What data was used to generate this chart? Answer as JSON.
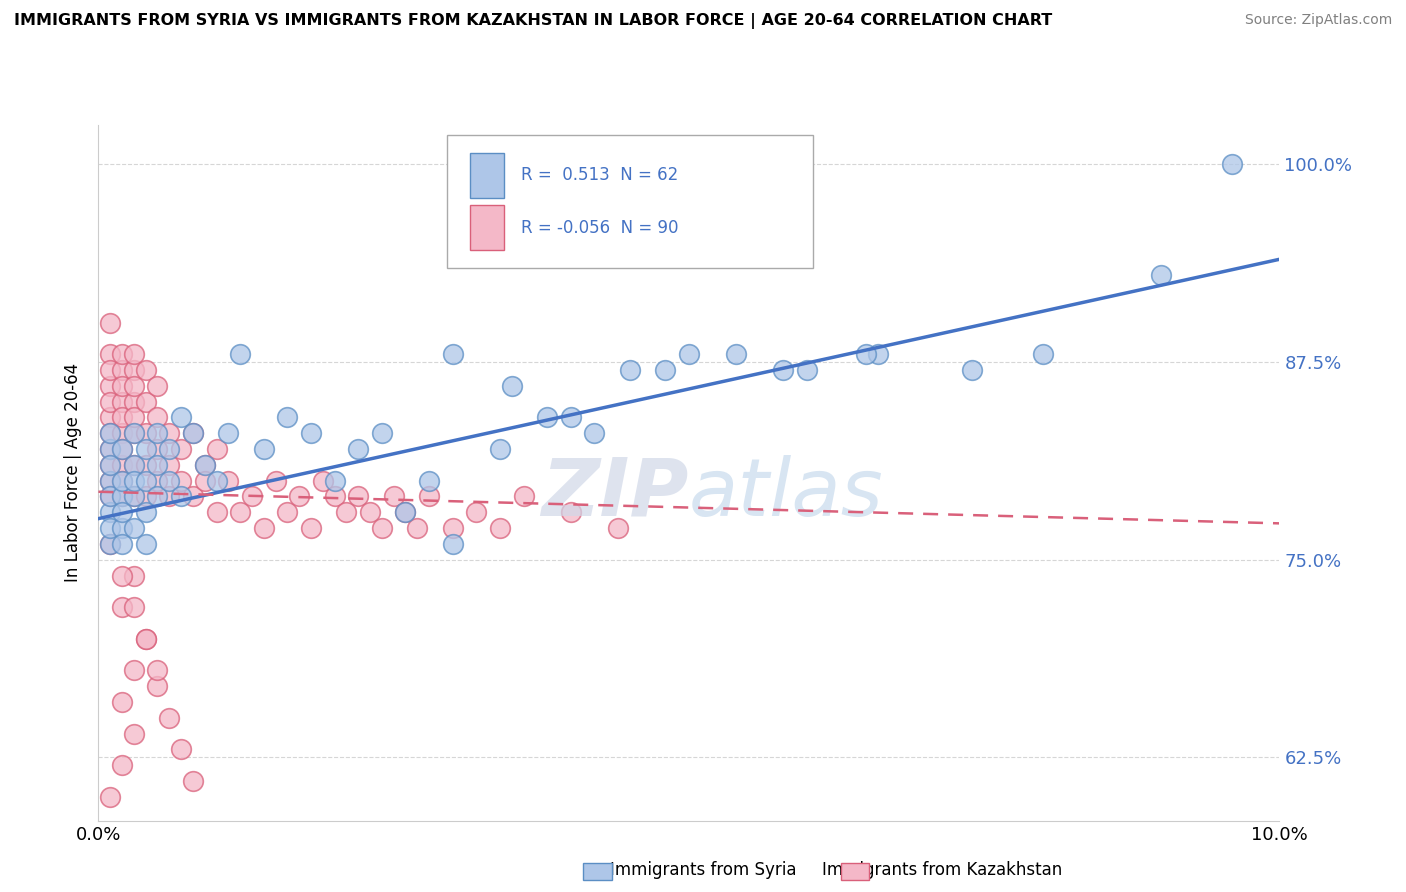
{
  "title": "IMMIGRANTS FROM SYRIA VS IMMIGRANTS FROM KAZAKHSTAN IN LABOR FORCE | AGE 20-64 CORRELATION CHART",
  "source": "Source: ZipAtlas.com",
  "ylabel": "In Labor Force | Age 20-64",
  "yticks": [
    0.625,
    0.75,
    0.875,
    1.0
  ],
  "ytick_labels": [
    "62.5%",
    "75.0%",
    "87.5%",
    "100.0%"
  ],
  "xlim": [
    0.0,
    0.1
  ],
  "ylim": [
    0.585,
    1.025
  ],
  "syria_R": 0.513,
  "syria_N": 62,
  "kazakhstan_R": -0.056,
  "kazakhstan_N": 90,
  "syria_color": "#aec6e8",
  "syria_edge_color": "#5b8ec4",
  "syria_line_color": "#4472c4",
  "kazakhstan_color": "#f4b8c8",
  "kazakhstan_edge_color": "#d9607a",
  "kazakhstan_line_color": "#d9607a",
  "legend_label_syria": "Immigrants from Syria",
  "legend_label_kazakhstan": "Immigrants from Kazakhstan",
  "syria_line_y0": 0.776,
  "syria_line_y1": 0.94,
  "kazakhstan_line_y0": 0.793,
  "kazakhstan_line_y1": 0.773,
  "syria_scatter_x": [
    0.001,
    0.001,
    0.001,
    0.001,
    0.001,
    0.001,
    0.001,
    0.001,
    0.002,
    0.002,
    0.002,
    0.002,
    0.002,
    0.002,
    0.003,
    0.003,
    0.003,
    0.003,
    0.003,
    0.004,
    0.004,
    0.004,
    0.004,
    0.005,
    0.005,
    0.005,
    0.006,
    0.006,
    0.007,
    0.007,
    0.008,
    0.009,
    0.01,
    0.011,
    0.012,
    0.014,
    0.016,
    0.018,
    0.02,
    0.022,
    0.024,
    0.026,
    0.028,
    0.03,
    0.034,
    0.038,
    0.042,
    0.048,
    0.054,
    0.06,
    0.066,
    0.074,
    0.08,
    0.03,
    0.035,
    0.04,
    0.045,
    0.05,
    0.058,
    0.065,
    0.09,
    0.096
  ],
  "syria_scatter_y": [
    0.8,
    0.78,
    0.82,
    0.76,
    0.79,
    0.83,
    0.77,
    0.81,
    0.79,
    0.8,
    0.77,
    0.82,
    0.78,
    0.76,
    0.81,
    0.79,
    0.83,
    0.77,
    0.8,
    0.82,
    0.78,
    0.8,
    0.76,
    0.81,
    0.79,
    0.83,
    0.8,
    0.82,
    0.79,
    0.84,
    0.83,
    0.81,
    0.8,
    0.83,
    0.88,
    0.82,
    0.84,
    0.83,
    0.8,
    0.82,
    0.83,
    0.78,
    0.8,
    0.76,
    0.82,
    0.84,
    0.83,
    0.87,
    0.88,
    0.87,
    0.88,
    0.87,
    0.88,
    0.88,
    0.86,
    0.84,
    0.87,
    0.88,
    0.87,
    0.88,
    0.93,
    1.0
  ],
  "kazakhstan_scatter_x": [
    0.001,
    0.001,
    0.001,
    0.001,
    0.001,
    0.001,
    0.001,
    0.001,
    0.001,
    0.001,
    0.001,
    0.002,
    0.002,
    0.002,
    0.002,
    0.002,
    0.002,
    0.002,
    0.002,
    0.002,
    0.002,
    0.003,
    0.003,
    0.003,
    0.003,
    0.003,
    0.003,
    0.003,
    0.003,
    0.004,
    0.004,
    0.004,
    0.004,
    0.004,
    0.005,
    0.005,
    0.005,
    0.005,
    0.006,
    0.006,
    0.006,
    0.007,
    0.007,
    0.008,
    0.008,
    0.009,
    0.009,
    0.01,
    0.01,
    0.011,
    0.012,
    0.013,
    0.014,
    0.015,
    0.016,
    0.017,
    0.018,
    0.019,
    0.02,
    0.021,
    0.022,
    0.023,
    0.024,
    0.025,
    0.026,
    0.027,
    0.028,
    0.03,
    0.032,
    0.034,
    0.036,
    0.04,
    0.044,
    0.002,
    0.003,
    0.004,
    0.005,
    0.006,
    0.007,
    0.008,
    0.002,
    0.003,
    0.001,
    0.002,
    0.003,
    0.004,
    0.005,
    0.001,
    0.002,
    0.003
  ],
  "kazakhstan_scatter_y": [
    0.84,
    0.86,
    0.88,
    0.82,
    0.8,
    0.85,
    0.87,
    0.9,
    0.83,
    0.79,
    0.81,
    0.85,
    0.87,
    0.83,
    0.81,
    0.79,
    0.88,
    0.86,
    0.84,
    0.82,
    0.8,
    0.85,
    0.83,
    0.81,
    0.87,
    0.79,
    0.88,
    0.86,
    0.84,
    0.83,
    0.81,
    0.79,
    0.85,
    0.87,
    0.82,
    0.8,
    0.84,
    0.86,
    0.83,
    0.81,
    0.79,
    0.8,
    0.82,
    0.83,
    0.79,
    0.81,
    0.8,
    0.78,
    0.82,
    0.8,
    0.78,
    0.79,
    0.77,
    0.8,
    0.78,
    0.79,
    0.77,
    0.8,
    0.79,
    0.78,
    0.79,
    0.78,
    0.77,
    0.79,
    0.78,
    0.77,
    0.79,
    0.77,
    0.78,
    0.77,
    0.79,
    0.78,
    0.77,
    0.66,
    0.68,
    0.7,
    0.67,
    0.65,
    0.63,
    0.61,
    0.72,
    0.74,
    0.76,
    0.74,
    0.72,
    0.7,
    0.68,
    0.6,
    0.62,
    0.64
  ],
  "background_color": "#ffffff",
  "grid_color": "#cccccc"
}
